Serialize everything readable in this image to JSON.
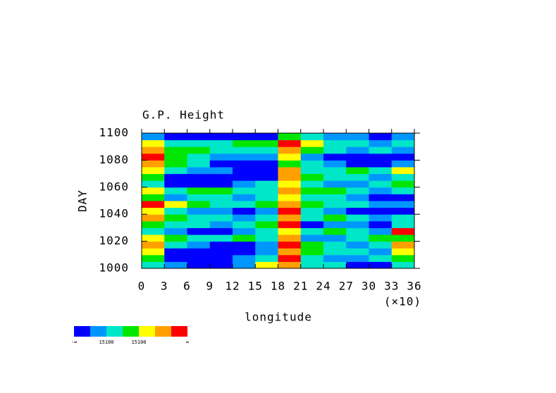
{
  "chart_data": {
    "type": "heatmap",
    "title": "G.P. Height",
    "xlabel": "longitude",
    "x_multiplier": "(×10)",
    "ylabel": "DAY",
    "xlim": [
      0,
      36
    ],
    "xticks": [
      0,
      3,
      6,
      9,
      12,
      15,
      18,
      21,
      24,
      27,
      30,
      33,
      36
    ],
    "ylim": [
      1000,
      1100
    ],
    "yticks": [
      1000,
      1020,
      1040,
      1060,
      1080,
      1100
    ],
    "colors": [
      "#0000ff",
      "#0096ff",
      "#00e6c8",
      "#00e600",
      "#ffff00",
      "#ffa000",
      "#ff0000"
    ],
    "colorbar_labels": [
      "-∞",
      "15100",
      "15100",
      "∞"
    ],
    "z": [
      [
        3,
        2,
        1,
        1,
        2,
        5,
        6,
        3,
        3,
        1,
        1,
        3
      ],
      [
        4,
        1,
        1,
        1,
        2,
        3,
        7,
        3,
        2,
        2,
        3,
        4
      ],
      [
        5,
        1,
        1,
        1,
        1,
        2,
        6,
        4,
        3,
        3,
        2,
        5
      ],
      [
        6,
        3,
        2,
        1,
        1,
        2,
        7,
        4,
        3,
        2,
        3,
        6
      ],
      [
        5,
        4,
        3,
        3,
        4,
        3,
        6,
        2,
        2,
        3,
        4,
        4
      ],
      [
        3,
        2,
        1,
        1,
        2,
        3,
        5,
        3,
        4,
        3,
        2,
        7
      ],
      [
        4,
        3,
        3,
        2,
        3,
        4,
        7,
        1,
        2,
        2,
        1,
        3
      ],
      [
        6,
        4,
        3,
        3,
        2,
        3,
        6,
        3,
        4,
        3,
        2,
        3
      ],
      [
        5,
        3,
        2,
        2,
        1,
        2,
        7,
        3,
        2,
        1,
        1,
        1
      ],
      [
        7,
        5,
        4,
        3,
        3,
        4,
        6,
        4,
        3,
        3,
        2,
        2
      ],
      [
        4,
        2,
        3,
        3,
        2,
        3,
        5,
        3,
        3,
        2,
        1,
        1
      ],
      [
        5,
        3,
        4,
        4,
        3,
        3,
        6,
        4,
        4,
        3,
        2,
        3
      ],
      [
        3,
        1,
        1,
        1,
        2,
        3,
        5,
        3,
        2,
        2,
        3,
        4
      ],
      [
        4,
        1,
        1,
        1,
        1,
        1,
        6,
        4,
        3,
        3,
        2,
        3
      ],
      [
        5,
        3,
        2,
        2,
        1,
        1,
        6,
        3,
        3,
        4,
        3,
        5
      ],
      [
        6,
        4,
        3,
        1,
        1,
        1,
        4,
        3,
        2,
        1,
        1,
        2
      ],
      [
        7,
        4,
        3,
        2,
        2,
        2,
        5,
        2,
        1,
        1,
        1,
        1
      ],
      [
        6,
        4,
        4,
        3,
        3,
        3,
        6,
        4,
        3,
        2,
        3,
        2
      ],
      [
        5,
        3,
        3,
        3,
        4,
        4,
        7,
        5,
        3,
        3,
        2,
        3
      ],
      [
        2,
        1,
        1,
        1,
        1,
        1,
        4,
        3,
        2,
        2,
        1,
        2
      ]
    ]
  }
}
